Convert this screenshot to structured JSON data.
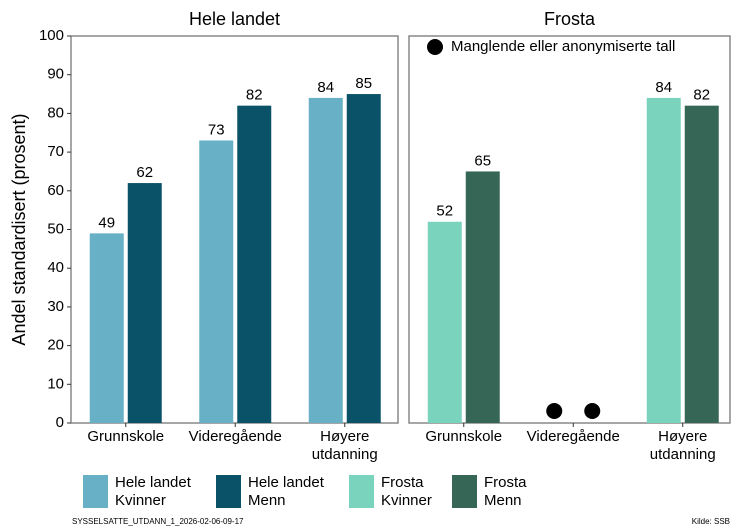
{
  "chart_data": [
    {
      "type": "bar",
      "title": "Hele landet",
      "ylabel": "Andel standardisert (prosent)",
      "categories": [
        "Grunnskole",
        "Videregående",
        "Høyere\nutdanning"
      ],
      "series": [
        {
          "name": "Hele landet\nKvinner",
          "color": "#67b0c6",
          "values": [
            49,
            73,
            84
          ]
        },
        {
          "name": "Hele landet\nMenn",
          "color": "#0a5268",
          "values": [
            62,
            82,
            85
          ]
        }
      ],
      "ylim": [
        0,
        100
      ],
      "yticks": [
        0,
        10,
        20,
        30,
        40,
        50,
        60,
        70,
        80,
        90,
        100
      ]
    },
    {
      "type": "bar",
      "title": "Frosta",
      "annotation": "Manglende eller anonymiserte tall",
      "categories": [
        "Grunnskole",
        "Videregående",
        "Høyere\nutdanning"
      ],
      "series": [
        {
          "name": "Frosta\nKvinner",
          "color": "#7ad3bd",
          "values": [
            52,
            null,
            84
          ]
        },
        {
          "name": "Frosta\nMenn",
          "color": "#366656",
          "values": [
            65,
            null,
            82
          ]
        }
      ],
      "ylim": [
        0,
        100
      ],
      "yticks": [
        0,
        10,
        20,
        30,
        40,
        50,
        60,
        70,
        80,
        90,
        100
      ]
    }
  ],
  "code": "SYSSELSATTE_UTDANN_1_2026-02-06-09-17",
  "source": "Kilde: SSB"
}
